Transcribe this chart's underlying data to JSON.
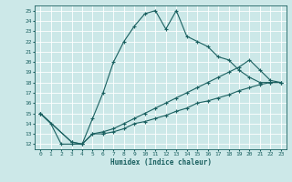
{
  "xlabel": "Humidex (Indice chaleur)",
  "bg_color": "#cce8e8",
  "grid_color": "#b0d0d0",
  "line_color": "#1a6060",
  "xlim": [
    -0.5,
    23.5
  ],
  "ylim": [
    11.5,
    25.5
  ],
  "xticks": [
    0,
    1,
    2,
    3,
    4,
    5,
    6,
    7,
    8,
    9,
    10,
    11,
    12,
    13,
    14,
    15,
    16,
    17,
    18,
    19,
    20,
    21,
    22,
    23
  ],
  "yticks": [
    12,
    13,
    14,
    15,
    16,
    17,
    18,
    19,
    20,
    21,
    22,
    23,
    24,
    25
  ],
  "series": [
    {
      "x": [
        0,
        1,
        2,
        3,
        4,
        5,
        6,
        7,
        8,
        9,
        10,
        11,
        12,
        13,
        14,
        15,
        16,
        17,
        18,
        19,
        20,
        21,
        22,
        23
      ],
      "y": [
        15,
        14,
        12,
        12,
        12,
        14.5,
        17,
        20,
        22,
        23.5,
        24.7,
        25,
        23.2,
        25,
        22.5,
        22,
        21.5,
        20.5,
        20.2,
        19.2,
        18.5,
        18,
        18,
        18
      ]
    },
    {
      "x": [
        0,
        3,
        4,
        5,
        6,
        7,
        8,
        9,
        10,
        11,
        12,
        13,
        14,
        15,
        16,
        17,
        18,
        19,
        20,
        21,
        22,
        23
      ],
      "y": [
        15,
        12.2,
        12,
        13,
        13.2,
        13.5,
        14,
        14.5,
        15,
        15.5,
        16,
        16.5,
        17,
        17.5,
        18,
        18.5,
        19,
        19.5,
        20.2,
        19.2,
        18.2,
        18
      ]
    },
    {
      "x": [
        0,
        3,
        4,
        5,
        6,
        7,
        8,
        9,
        10,
        11,
        12,
        13,
        14,
        15,
        16,
        17,
        18,
        19,
        20,
        21,
        22,
        23
      ],
      "y": [
        15,
        12.2,
        12,
        13,
        13,
        13.2,
        13.5,
        14,
        14.2,
        14.5,
        14.8,
        15.2,
        15.5,
        16,
        16.2,
        16.5,
        16.8,
        17.2,
        17.5,
        17.8,
        18,
        18
      ]
    }
  ]
}
